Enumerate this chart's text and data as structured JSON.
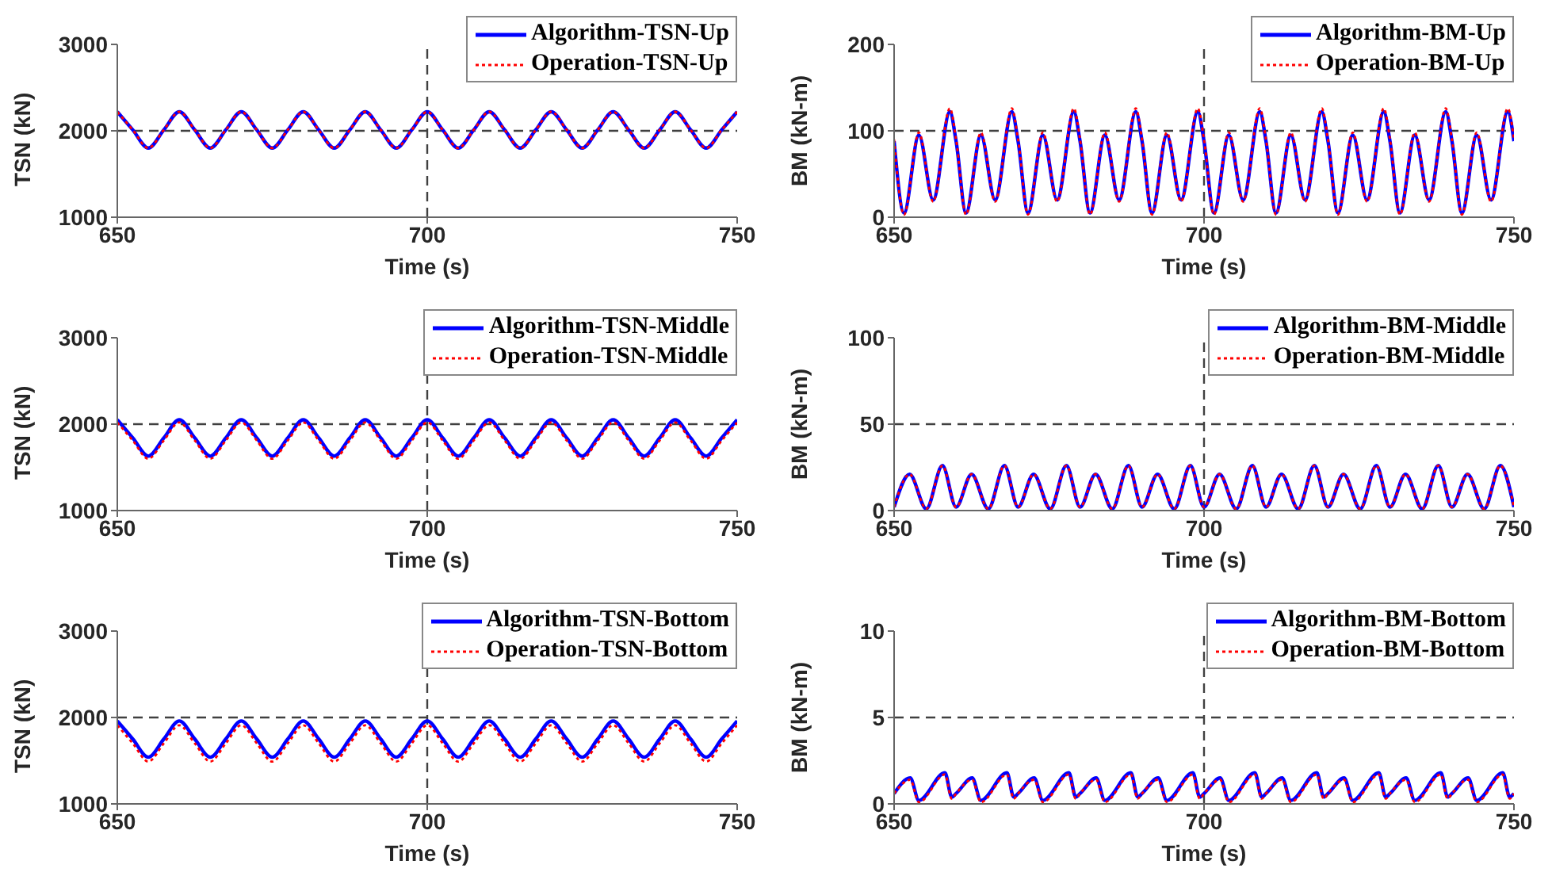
{
  "chart_data": [
    {
      "type": "line",
      "xlabel": "Time (s)",
      "ylabel": "TSN (kN)",
      "xlim": [
        650,
        750
      ],
      "xticks": [
        650,
        700,
        750
      ],
      "ylim": [
        1000,
        3000
      ],
      "yticks": [
        1000,
        2000,
        3000
      ],
      "legend": "top right",
      "x": [
        650,
        652.5,
        655,
        657.5,
        660,
        662.5,
        665,
        667.5,
        670,
        672.5,
        675,
        677.5,
        680,
        682.5,
        685,
        687.5,
        690,
        692.5,
        695,
        697.5,
        700,
        702.5,
        705,
        707.5,
        710,
        712.5,
        715,
        717.5,
        720,
        722.5,
        725,
        727.5,
        730,
        732.5,
        735,
        737.5,
        740,
        742.5,
        745,
        747.5,
        750
      ],
      "series": [
        {
          "name": "Algorithm-TSN-Up",
          "color": "#0000ff",
          "line_style": "solid",
          "values": [
            2220,
            2010,
            1800,
            2010,
            2220,
            2010,
            1800,
            2010,
            2220,
            2010,
            1800,
            2010,
            2220,
            2010,
            1800,
            2010,
            2220,
            2010,
            1800,
            2010,
            2220,
            2010,
            1800,
            2010,
            2220,
            2010,
            1800,
            2010,
            2220,
            2010,
            1800,
            2010,
            2220,
            2010,
            1800,
            2010,
            2220,
            2010,
            1800,
            2010,
            2220
          ]
        },
        {
          "name": "Operation-TSN-Up",
          "color": "#ff0000",
          "line_style": "dotted",
          "values": [
            2220,
            2010,
            1800,
            2010,
            2220,
            2010,
            1800,
            2010,
            2220,
            2010,
            1800,
            2010,
            2220,
            2010,
            1800,
            2010,
            2220,
            2010,
            1800,
            2010,
            2220,
            2010,
            1800,
            2010,
            2220,
            2010,
            1800,
            2010,
            2220,
            2010,
            1800,
            2010,
            2220,
            2010,
            1800,
            2010,
            2220,
            2010,
            1800,
            2010,
            2220
          ]
        }
      ],
      "ref_lines": [
        {
          "axis": "y",
          "value": 2000,
          "color": "#404040",
          "line_style": "dashed"
        },
        {
          "axis": "x",
          "value": 700,
          "color": "#404040",
          "line_style": "dashed"
        }
      ]
    },
    {
      "type": "line",
      "xlabel": "Time (s)",
      "ylabel": "BM (kN-m)",
      "xlim": [
        650,
        750
      ],
      "xticks": [
        650,
        700,
        750
      ],
      "ylim": [
        0,
        200
      ],
      "yticks": [
        0,
        100,
        200
      ],
      "legend": "top right",
      "x": [
        650,
        651.6,
        654,
        656.3,
        659,
        660,
        661.6,
        664,
        666.3,
        669,
        670,
        671.6,
        674,
        676.3,
        679,
        680,
        681.6,
        684,
        686.3,
        689,
        690,
        691.6,
        694,
        696.3,
        699,
        700,
        701.6,
        704,
        706.3,
        709,
        710,
        711.6,
        714,
        716.3,
        719,
        720,
        721.6,
        724,
        726.3,
        729,
        730,
        731.6,
        734,
        736.3,
        739,
        740,
        741.6,
        744,
        746.3,
        749,
        750
      ],
      "series": [
        {
          "name": "Algorithm-BM-Up",
          "color": "#0000ff",
          "line_style": "solid",
          "values": [
            88,
            5,
            95,
            20,
            122,
            88,
            5,
            95,
            20,
            122,
            88,
            5,
            95,
            20,
            122,
            88,
            5,
            95,
            20,
            122,
            88,
            5,
            95,
            20,
            122,
            88,
            5,
            95,
            20,
            122,
            88,
            5,
            95,
            20,
            122,
            88,
            5,
            95,
            20,
            122,
            88,
            5,
            95,
            20,
            122,
            88,
            5,
            95,
            20,
            122,
            88
          ]
        },
        {
          "name": "Operation-BM-Up",
          "color": "#ff0000",
          "line_style": "dotted",
          "values": [
            90,
            3,
            98,
            18,
            126,
            90,
            3,
            98,
            18,
            126,
            90,
            3,
            98,
            18,
            126,
            90,
            3,
            98,
            18,
            126,
            90,
            3,
            98,
            18,
            126,
            90,
            3,
            98,
            18,
            126,
            90,
            3,
            98,
            18,
            126,
            90,
            3,
            98,
            18,
            126,
            90,
            3,
            98,
            18,
            126,
            90,
            3,
            98,
            18,
            126,
            90
          ]
        }
      ],
      "ref_lines": [
        {
          "axis": "y",
          "value": 100,
          "color": "#404040",
          "line_style": "dashed"
        },
        {
          "axis": "x",
          "value": 700,
          "color": "#404040",
          "line_style": "dashed"
        }
      ]
    },
    {
      "type": "line",
      "xlabel": "Time (s)",
      "ylabel": "TSN (kN)",
      "xlim": [
        650,
        750
      ],
      "xticks": [
        650,
        700,
        750
      ],
      "ylim": [
        1000,
        3000
      ],
      "yticks": [
        1000,
        2000,
        3000
      ],
      "legend": "top right",
      "x": [
        650,
        652.5,
        655,
        657.5,
        660,
        662.5,
        665,
        667.5,
        670,
        672.5,
        675,
        677.5,
        680,
        682.5,
        685,
        687.5,
        690,
        692.5,
        695,
        697.5,
        700,
        702.5,
        705,
        707.5,
        710,
        712.5,
        715,
        717.5,
        720,
        722.5,
        725,
        727.5,
        730,
        732.5,
        735,
        737.5,
        740,
        742.5,
        745,
        747.5,
        750
      ],
      "series": [
        {
          "name": "Algorithm-TSN-Middle",
          "color": "#0000ff",
          "line_style": "solid",
          "values": [
            2050,
            1840,
            1630,
            1840,
            2050,
            1840,
            1630,
            1840,
            2050,
            1840,
            1630,
            1840,
            2050,
            1840,
            1630,
            1840,
            2050,
            1840,
            1630,
            1840,
            2050,
            1840,
            1630,
            1840,
            2050,
            1840,
            1630,
            1840,
            2050,
            1840,
            1630,
            1840,
            2050,
            1840,
            1630,
            1840,
            2050,
            1840,
            1630,
            1840,
            2050
          ]
        },
        {
          "name": "Operation-TSN-Middle",
          "color": "#ff0000",
          "line_style": "dotted",
          "values": [
            2020,
            1810,
            1600,
            1810,
            2020,
            1810,
            1600,
            1810,
            2020,
            1810,
            1600,
            1810,
            2020,
            1810,
            1600,
            1810,
            2020,
            1810,
            1600,
            1810,
            2020,
            1810,
            1600,
            1810,
            2020,
            1810,
            1600,
            1810,
            2020,
            1810,
            1600,
            1810,
            2020,
            1810,
            1600,
            1810,
            2020,
            1810,
            1600,
            1810,
            2020
          ]
        }
      ],
      "ref_lines": [
        {
          "axis": "y",
          "value": 2000,
          "color": "#404040",
          "line_style": "dashed"
        },
        {
          "axis": "x",
          "value": 700,
          "color": "#404040",
          "line_style": "dashed"
        }
      ]
    },
    {
      "type": "line",
      "xlabel": "Time (s)",
      "ylabel": "BM (kN-m)",
      "xlim": [
        650,
        750
      ],
      "xticks": [
        650,
        700,
        750
      ],
      "ylim": [
        0,
        100
      ],
      "yticks": [
        0,
        50,
        100
      ],
      "legend": "top right",
      "x": [
        650,
        652.5,
        655.2,
        657.8,
        660,
        662.5,
        665.2,
        667.8,
        670,
        672.5,
        675.2,
        677.8,
        680,
        682.5,
        685.2,
        687.8,
        690,
        692.5,
        695.2,
        697.8,
        700,
        702.5,
        705.2,
        707.8,
        710,
        712.5,
        715.2,
        717.8,
        720,
        722.5,
        725.2,
        727.8,
        730,
        732.5,
        735.2,
        737.8,
        740,
        742.5,
        745.2,
        747.8,
        750
      ],
      "series": [
        {
          "name": "Algorithm-BM-Middle",
          "color": "#0000ff",
          "line_style": "solid",
          "values": [
            2,
            21,
            1,
            26,
            2,
            21,
            1,
            26,
            2,
            21,
            1,
            26,
            2,
            21,
            1,
            26,
            2,
            21,
            1,
            26,
            2,
            21,
            1,
            26,
            2,
            21,
            1,
            26,
            2,
            21,
            1,
            26,
            2,
            21,
            1,
            26,
            2,
            21,
            1,
            26,
            2
          ]
        },
        {
          "name": "Operation-BM-Middle",
          "color": "#ff0000",
          "line_style": "dotted",
          "values": [
            2,
            21,
            1,
            26,
            2,
            21,
            1,
            26,
            2,
            21,
            1,
            26,
            2,
            21,
            1,
            26,
            2,
            21,
            1,
            26,
            2,
            21,
            1,
            26,
            2,
            21,
            1,
            26,
            2,
            21,
            1,
            26,
            2,
            21,
            1,
            26,
            2,
            21,
            1,
            26,
            2
          ]
        }
      ],
      "ref_lines": [
        {
          "axis": "y",
          "value": 50,
          "color": "#404040",
          "line_style": "dashed"
        },
        {
          "axis": "x",
          "value": 700,
          "color": "#404040",
          "line_style": "dashed"
        }
      ]
    },
    {
      "type": "line",
      "xlabel": "Time (s)",
      "ylabel": "TSN (kN)",
      "xlim": [
        650,
        750
      ],
      "xticks": [
        650,
        700,
        750
      ],
      "ylim": [
        1000,
        3000
      ],
      "yticks": [
        1000,
        2000,
        3000
      ],
      "legend": "top right",
      "x": [
        650,
        652.5,
        655,
        657.5,
        660,
        662.5,
        665,
        667.5,
        670,
        672.5,
        675,
        677.5,
        680,
        682.5,
        685,
        687.5,
        690,
        692.5,
        695,
        697.5,
        700,
        702.5,
        705,
        707.5,
        710,
        712.5,
        715,
        717.5,
        720,
        722.5,
        725,
        727.5,
        730,
        732.5,
        735,
        737.5,
        740,
        742.5,
        745,
        747.5,
        750
      ],
      "series": [
        {
          "name": "Algorithm-TSN-Bottom",
          "color": "#0000ff",
          "line_style": "solid",
          "values": [
            1960,
            1750,
            1540,
            1750,
            1960,
            1750,
            1540,
            1750,
            1960,
            1750,
            1540,
            1750,
            1960,
            1750,
            1540,
            1750,
            1960,
            1750,
            1540,
            1750,
            1960,
            1750,
            1540,
            1750,
            1960,
            1750,
            1540,
            1750,
            1960,
            1750,
            1540,
            1750,
            1960,
            1750,
            1540,
            1750,
            1960,
            1750,
            1540,
            1750,
            1960
          ]
        },
        {
          "name": "Operation-TSN-Bottom",
          "color": "#ff0000",
          "line_style": "dotted",
          "values": [
            1910,
            1700,
            1490,
            1700,
            1910,
            1700,
            1490,
            1700,
            1910,
            1700,
            1490,
            1700,
            1910,
            1700,
            1490,
            1700,
            1910,
            1700,
            1490,
            1700,
            1910,
            1700,
            1490,
            1700,
            1910,
            1700,
            1490,
            1700,
            1910,
            1700,
            1490,
            1700,
            1910,
            1700,
            1490,
            1700,
            1910,
            1700,
            1490,
            1700,
            1910
          ]
        }
      ],
      "ref_lines": [
        {
          "axis": "y",
          "value": 2000,
          "color": "#404040",
          "line_style": "dashed"
        },
        {
          "axis": "x",
          "value": 700,
          "color": "#404040",
          "line_style": "dashed"
        }
      ]
    },
    {
      "type": "line",
      "xlabel": "Time (s)",
      "ylabel": "BM (kN-m)",
      "xlim": [
        650,
        750
      ],
      "xticks": [
        650,
        700,
        750
      ],
      "ylim": [
        0,
        10
      ],
      "yticks": [
        0,
        5,
        10
      ],
      "legend": "top right",
      "x": [
        650,
        652.6,
        654,
        658.2,
        659.3,
        660,
        662.6,
        664,
        668.2,
        669.3,
        670,
        672.6,
        674,
        678.2,
        679.3,
        680,
        682.6,
        684,
        688.2,
        689.3,
        690,
        692.6,
        694,
        698.2,
        699.3,
        700,
        702.6,
        704,
        708.2,
        709.3,
        710,
        712.6,
        714,
        718.2,
        719.3,
        720,
        722.6,
        724,
        728.2,
        729.3,
        730,
        732.6,
        734,
        738.2,
        739.3,
        740,
        742.6,
        744,
        748.2,
        749.3,
        750
      ],
      "series": [
        {
          "name": "Algorithm-BM-Bottom",
          "color": "#0000ff",
          "line_style": "solid",
          "values": [
            0.6,
            1.5,
            0.2,
            1.8,
            0.4,
            0.6,
            1.5,
            0.2,
            1.8,
            0.4,
            0.6,
            1.5,
            0.2,
            1.8,
            0.4,
            0.6,
            1.5,
            0.2,
            1.8,
            0.4,
            0.6,
            1.5,
            0.2,
            1.8,
            0.4,
            0.6,
            1.5,
            0.2,
            1.8,
            0.4,
            0.6,
            1.5,
            0.2,
            1.8,
            0.4,
            0.6,
            1.5,
            0.2,
            1.8,
            0.4,
            0.6,
            1.5,
            0.2,
            1.8,
            0.4,
            0.6,
            1.5,
            0.2,
            1.8,
            0.4,
            0.6
          ]
        },
        {
          "name": "Operation-BM-Bottom",
          "color": "#ff0000",
          "line_style": "dotted",
          "values": [
            0.6,
            1.4,
            0.1,
            1.7,
            0.3,
            0.6,
            1.4,
            0.1,
            1.7,
            0.3,
            0.6,
            1.4,
            0.1,
            1.7,
            0.3,
            0.6,
            1.4,
            0.1,
            1.7,
            0.3,
            0.6,
            1.4,
            0.1,
            1.7,
            0.3,
            0.6,
            1.4,
            0.1,
            1.7,
            0.3,
            0.6,
            1.4,
            0.1,
            1.7,
            0.3,
            0.6,
            1.4,
            0.1,
            1.7,
            0.3,
            0.6,
            1.4,
            0.1,
            1.7,
            0.3,
            0.6,
            1.4,
            0.1,
            1.7,
            0.3,
            0.6
          ]
        }
      ],
      "ref_lines": [
        {
          "axis": "y",
          "value": 5,
          "color": "#404040",
          "line_style": "dashed"
        },
        {
          "axis": "x",
          "value": 700,
          "color": "#404040",
          "line_style": "dashed"
        }
      ]
    }
  ]
}
